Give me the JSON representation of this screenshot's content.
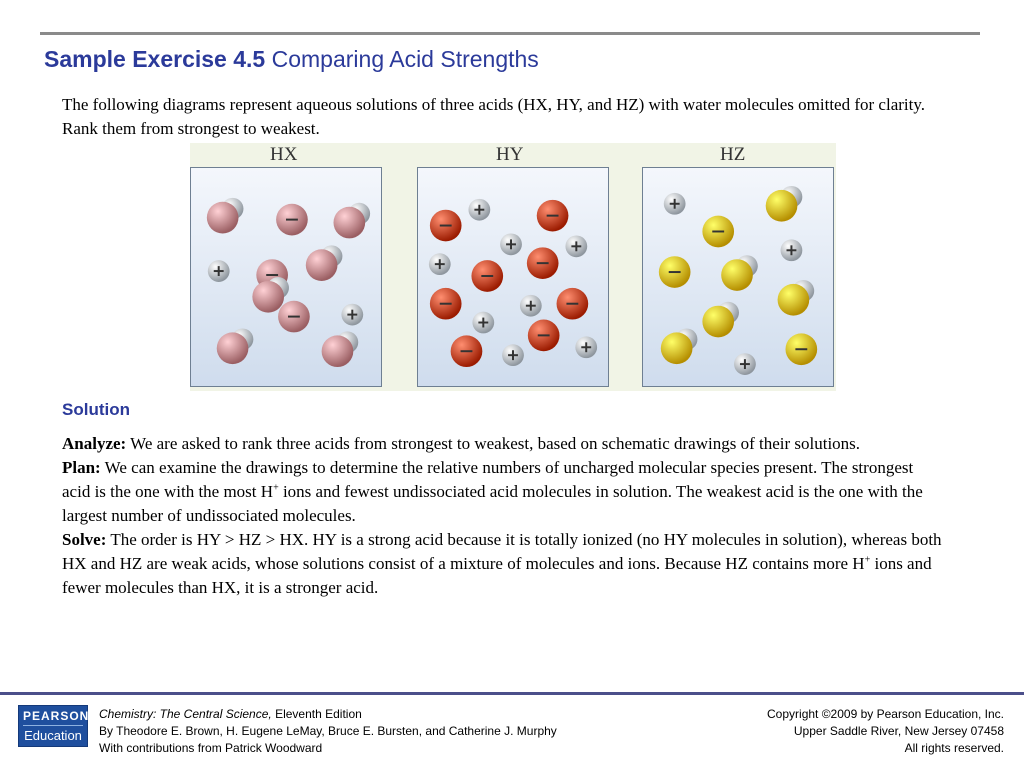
{
  "title": {
    "number": "Sample Exercise 4.5",
    "name": "Comparing Acid Strengths"
  },
  "intro": "The following diagrams represent aqueous solutions of three acids (HX, HY, and HZ) with water molecules omitted for clarity. Rank them from strongest to weakest.",
  "figure": {
    "panels": [
      {
        "label": "HX",
        "anion_color": "#c78b8f",
        "particles": [
          [
            "m",
            32,
            50
          ],
          [
            "a",
            102,
            52
          ],
          [
            "m",
            160,
            55
          ],
          [
            "p",
            28,
            104
          ],
          [
            "a",
            82,
            108
          ],
          [
            "m",
            132,
            98
          ],
          [
            "m",
            78,
            130
          ],
          [
            "a",
            104,
            150
          ],
          [
            "p",
            163,
            148
          ],
          [
            "m",
            42,
            182
          ],
          [
            "m",
            148,
            185
          ]
        ]
      },
      {
        "label": "HY",
        "anion_color": "#c8482a",
        "particles": [
          [
            "a",
            28,
            58
          ],
          [
            "p",
            62,
            42
          ],
          [
            "a",
            136,
            48
          ],
          [
            "p",
            94,
            77
          ],
          [
            "p",
            160,
            79
          ],
          [
            "p",
            22,
            97
          ],
          [
            "a",
            70,
            109
          ],
          [
            "a",
            126,
            96
          ],
          [
            "a",
            28,
            137
          ],
          [
            "p",
            114,
            139
          ],
          [
            "a",
            156,
            137
          ],
          [
            "p",
            66,
            156
          ],
          [
            "a",
            127,
            169
          ],
          [
            "a",
            49,
            185
          ],
          [
            "p",
            96,
            189
          ],
          [
            "p",
            170,
            181
          ]
        ]
      },
      {
        "label": "HZ",
        "anion_color": "#e2bb22",
        "particles": [
          [
            "p",
            32,
            36
          ],
          [
            "m",
            140,
            38
          ],
          [
            "a",
            76,
            64
          ],
          [
            "p",
            150,
            83
          ],
          [
            "a",
            32,
            105
          ],
          [
            "m",
            95,
            108
          ],
          [
            "m",
            152,
            133
          ],
          [
            "m",
            76,
            155
          ],
          [
            "m",
            34,
            182
          ],
          [
            "a",
            160,
            183
          ],
          [
            "p",
            103,
            198
          ]
        ]
      }
    ]
  },
  "solution_heading": "Solution",
  "analyze": {
    "label": "Analyze:",
    "text": " We are asked to rank three acids from strongest to weakest, based on schematic drawings of their solutions."
  },
  "plan": {
    "label": "Plan:",
    "text_1": " We can examine the drawings to determine the relative numbers of uncharged molecular species present. The strongest acid is the one with the most H",
    "sup": "+",
    "text_2": " ions and fewest undissociated acid molecules in solution. The weakest acid is the one with the largest number of undissociated molecules."
  },
  "solve": {
    "label": "Solve:",
    "text_1": " The order is HY > HZ > HX. HY is a strong acid because it is totally ionized (no HY molecules in solution), whereas both HX and HZ are weak acids, whose solutions consist of a mixture of molecules and ions. Because HZ contains more H",
    "sup": "+",
    "text_2": " ions and fewer molecules than HX, it is a stronger acid."
  },
  "footer": {
    "logo_top": "PEARSON",
    "logo_bottom": "Education",
    "book_title": "Chemistry: The Central Science,",
    "edition": " Eleventh Edition",
    "authors": "By Theodore E. Brown, H. Eugene LeMay, Bruce E. Bursten, and Catherine J. Murphy",
    "contributions": "With contributions from Patrick Woodward",
    "copyright": "Copyright ©2009 by Pearson Education, Inc.",
    "address": "Upper Saddle River, New Jersey 07458",
    "rights": "All rights reserved."
  }
}
